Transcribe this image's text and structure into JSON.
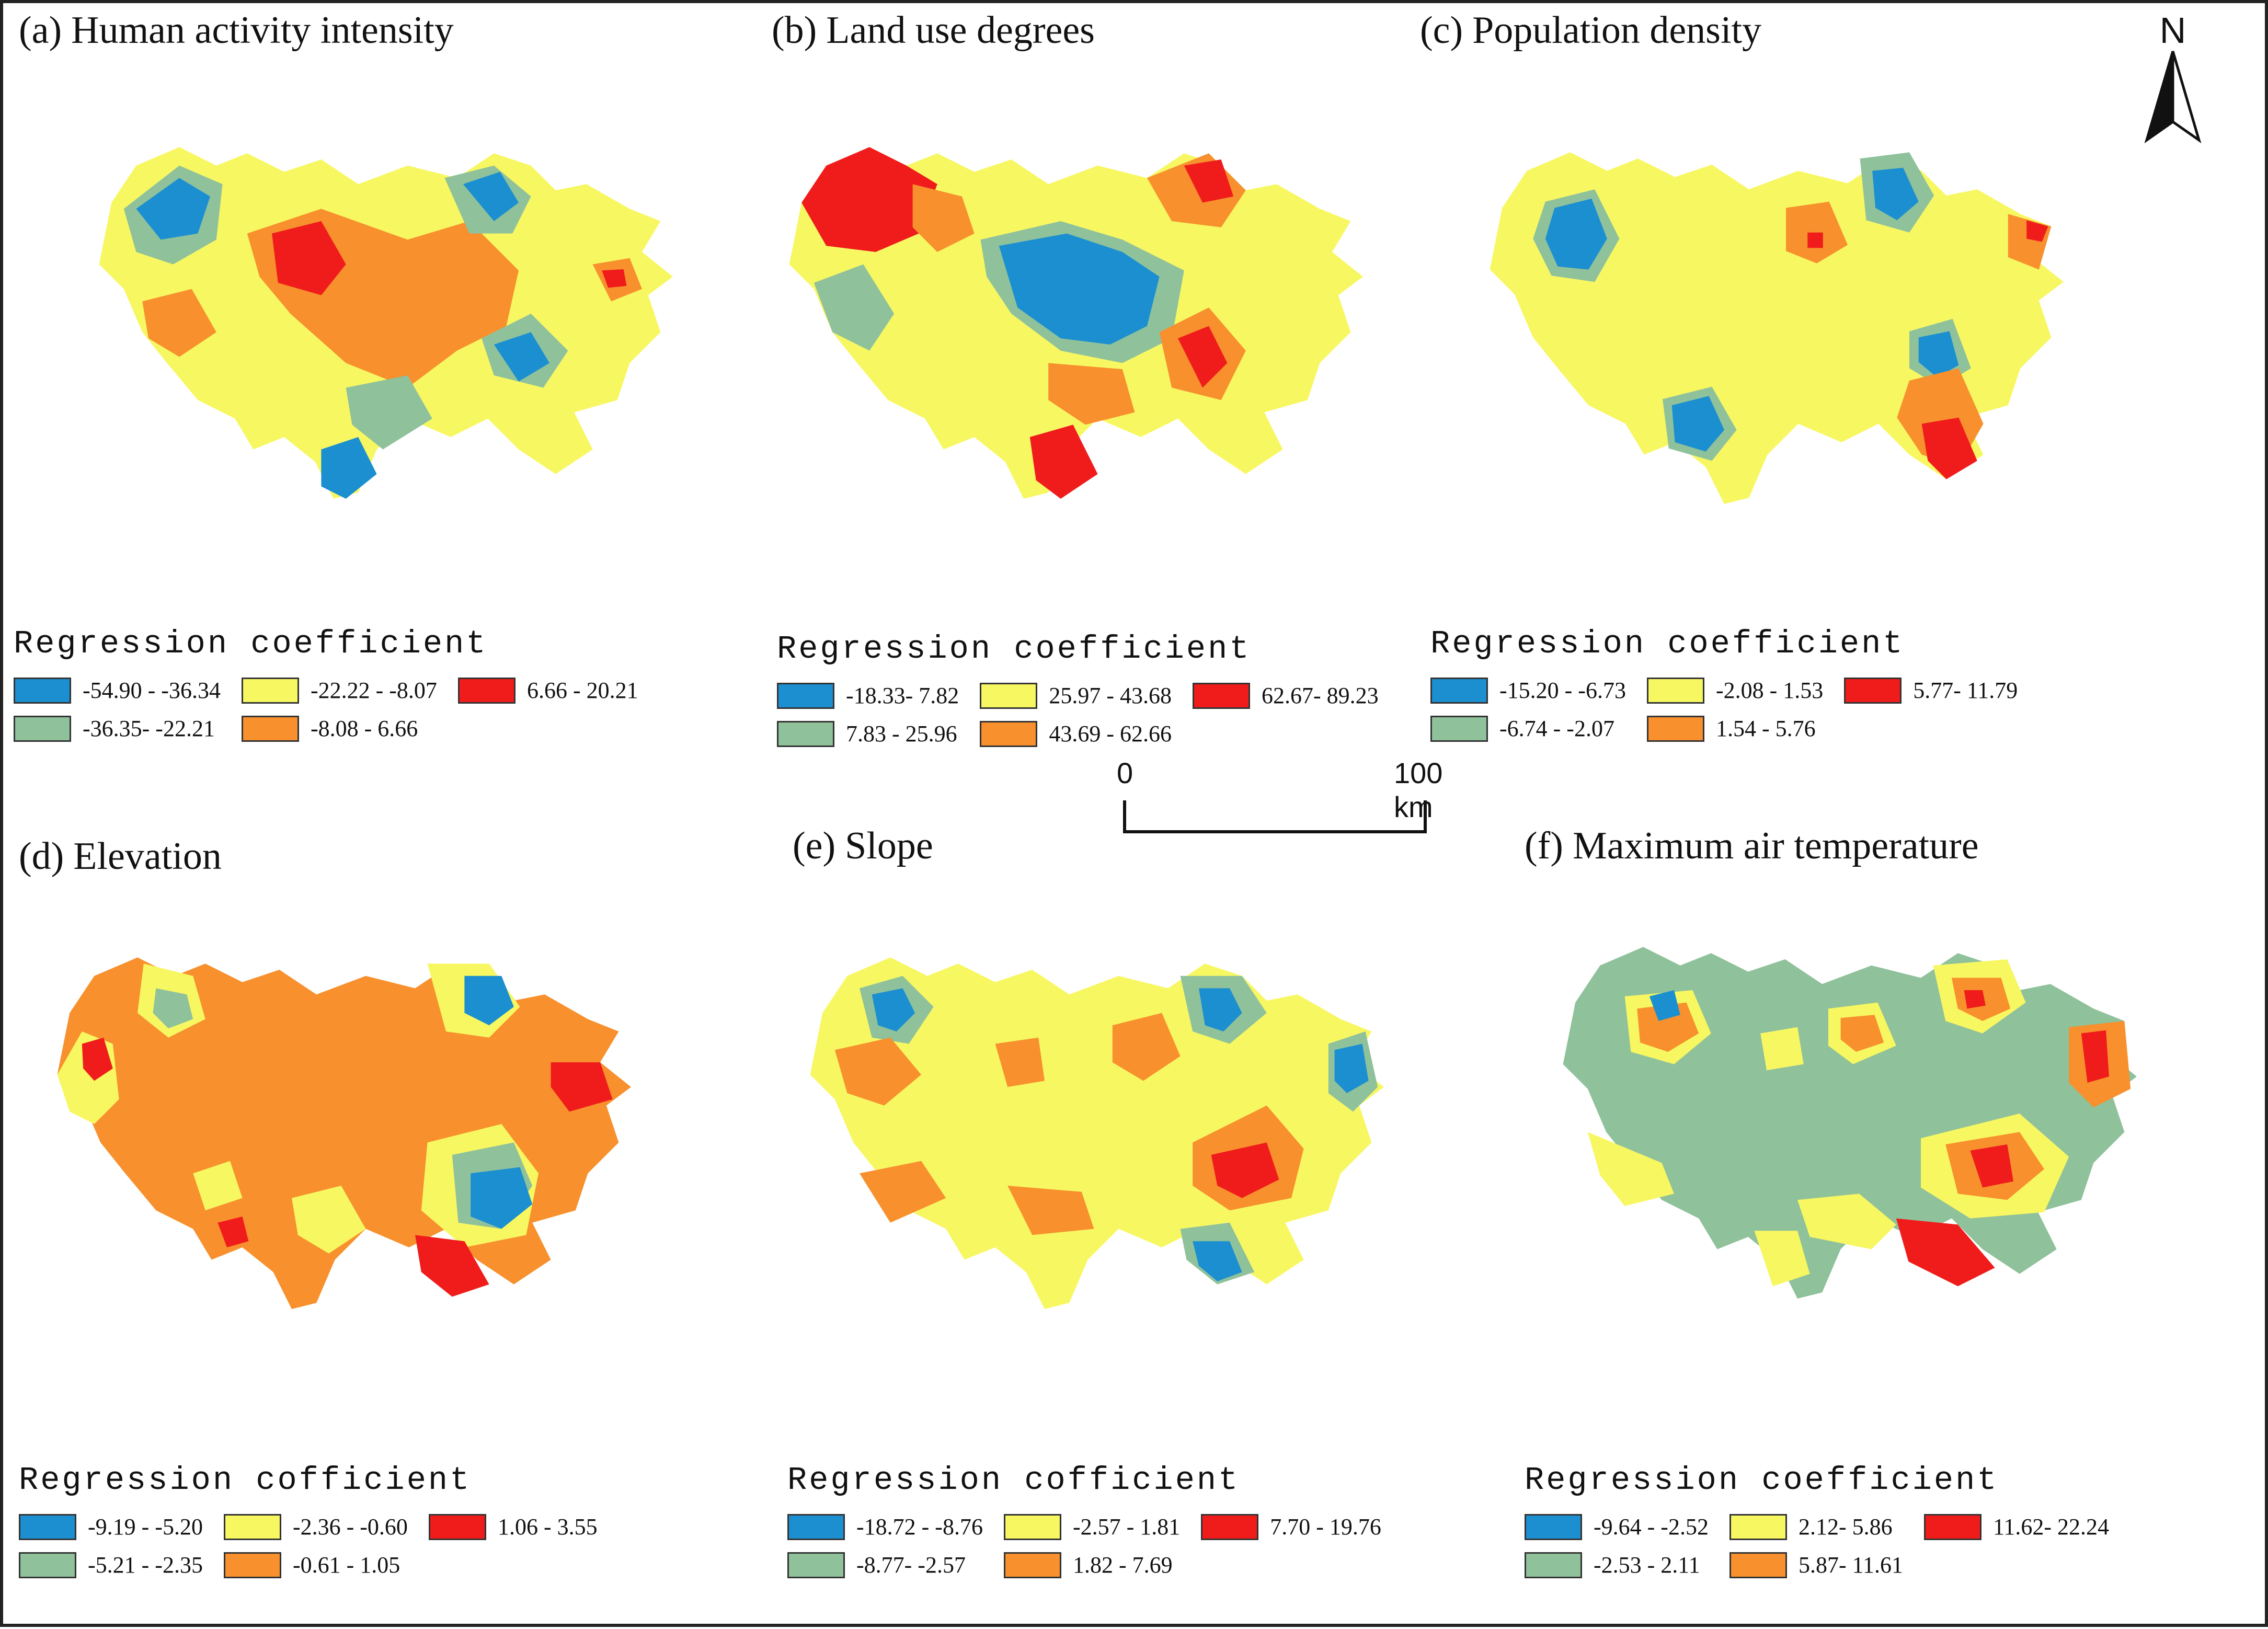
{
  "colors": {
    "blue": "#1b8fd0",
    "green": "#8fc19b",
    "yellow": "#f7f762",
    "orange": "#f7902d",
    "red": "#f01c1c"
  },
  "panels": [
    {
      "letter": "(a)",
      "title": "Human activity intensity",
      "legend_title": "Regression coefficient",
      "legend_items": [
        {
          "label": "-54.90 - -36.34",
          "color": "#1b8fd0"
        },
        {
          "label": "-22.22 - -8.07",
          "color": "#f7f762"
        },
        {
          "label": "6.66 - 20.21",
          "color": "#f01c1c"
        },
        {
          "label": "-36.35- -22.21",
          "color": "#8fc19b"
        },
        {
          "label": "-8.08 - 6.66",
          "color": "#f7902d"
        }
      ]
    },
    {
      "letter": "(b)",
      "title": "Land use degrees",
      "legend_title": "Regression coefficient",
      "legend_items": [
        {
          "label": "-18.33- 7.82",
          "color": "#1b8fd0"
        },
        {
          "label": "25.97 - 43.68",
          "color": "#f7f762"
        },
        {
          "label": "62.67- 89.23",
          "color": "#f01c1c"
        },
        {
          "label": "7.83 - 25.96",
          "color": "#8fc19b"
        },
        {
          "label": "43.69 - 62.66",
          "color": "#f7902d"
        }
      ]
    },
    {
      "letter": "(c)",
      "title": "Population density",
      "legend_title": "Regression coefficient",
      "legend_items": [
        {
          "label": "-15.20 - -6.73",
          "color": "#1b8fd0"
        },
        {
          "label": "-2.08 - 1.53",
          "color": "#f7f762"
        },
        {
          "label": "5.77- 11.79",
          "color": "#f01c1c"
        },
        {
          "label": "-6.74 - -2.07",
          "color": "#8fc19b"
        },
        {
          "label": "1.54 - 5.76",
          "color": "#f7902d"
        }
      ]
    },
    {
      "letter": "(d)",
      "title": "Elevation",
      "legend_title": "Regression cofficient",
      "legend_items": [
        {
          "label": "-9.19 - -5.20",
          "color": "#1b8fd0"
        },
        {
          "label": "-2.36 - -0.60",
          "color": "#f7f762"
        },
        {
          "label": "1.06 - 3.55",
          "color": "#f01c1c"
        },
        {
          "label": "-5.21 - -2.35",
          "color": "#8fc19b"
        },
        {
          "label": "-0.61 - 1.05",
          "color": "#f7902d"
        }
      ]
    },
    {
      "letter": "(e)",
      "title": "Slope",
      "legend_title": "Regression cofficient",
      "legend_items": [
        {
          "label": "-18.72 - -8.76",
          "color": "#1b8fd0"
        },
        {
          "label": "-2.57 - 1.81",
          "color": "#f7f762"
        },
        {
          "label": "7.70 - 19.76",
          "color": "#f01c1c"
        },
        {
          "label": "-8.77- -2.57",
          "color": "#8fc19b"
        },
        {
          "label": "1.82 - 7.69",
          "color": "#f7902d"
        }
      ]
    },
    {
      "letter": "(f)",
      "title": "Maximum air temperature",
      "legend_title": "Regression coefficient",
      "legend_items": [
        {
          "label": "-9.64 - -2.52",
          "color": "#1b8fd0"
        },
        {
          "label": "2.12- 5.86",
          "color": "#f7f762"
        },
        {
          "label": "11.62- 22.24",
          "color": "#f01c1c"
        },
        {
          "label": "-2.53 - 2.11",
          "color": "#8fc19b"
        },
        {
          "label": "5.87- 11.61",
          "color": "#f7902d"
        }
      ]
    }
  ],
  "scale_bar": {
    "start_label": "0",
    "end_label": "100 km"
  },
  "north_arrow": {
    "label": "N"
  }
}
